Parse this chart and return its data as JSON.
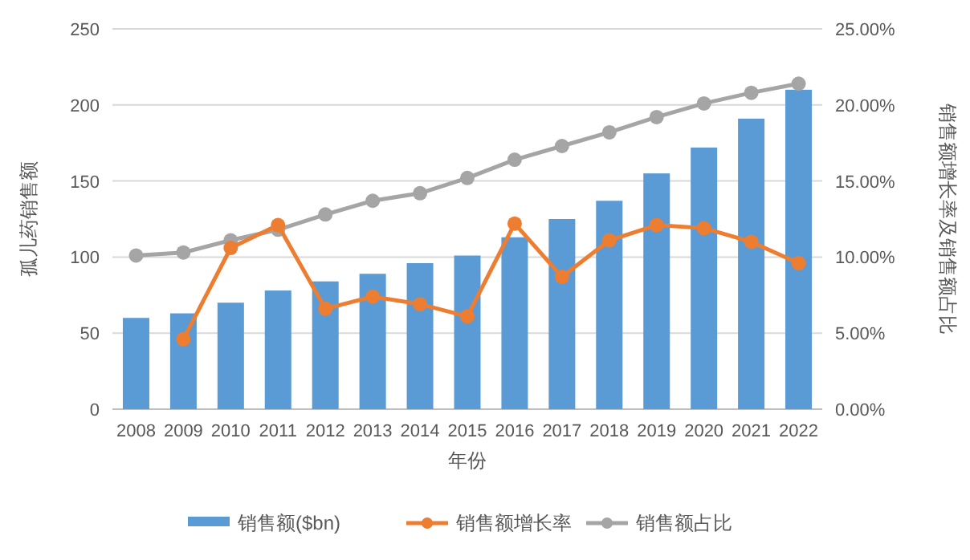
{
  "chart_data": {
    "type": "bar",
    "xlabel": "年份",
    "ylabel": "孤儿药销售额",
    "y2label": "销售额增长率及销售额占比",
    "categories": [
      "2008",
      "2009",
      "2010",
      "2011",
      "2012",
      "2013",
      "2014",
      "2015",
      "2016",
      "2017",
      "2018",
      "2019",
      "2020",
      "2021",
      "2022"
    ],
    "series": [
      {
        "name": "销售额($bn)",
        "color": "#5b9bd5",
        "values": [
          60,
          63,
          70,
          78,
          84,
          89,
          96,
          101,
          113,
          125,
          137,
          155,
          172,
          191,
          210
        ]
      },
      {
        "name": "销售额增长率",
        "type": "line",
        "axis": "y2",
        "color": "#ed7d31",
        "values": [
          null,
          4.6,
          10.6,
          12.1,
          6.6,
          7.4,
          6.9,
          6.1,
          12.2,
          8.7,
          11.1,
          12.1,
          11.9,
          11.0,
          9.6
        ]
      },
      {
        "name": "销售额占比",
        "type": "line",
        "axis": "y2",
        "color": "#a5a5a5",
        "values": [
          10.1,
          10.3,
          11.1,
          11.8,
          12.8,
          13.7,
          14.2,
          15.2,
          16.4,
          17.3,
          18.2,
          19.2,
          20.1,
          20.8,
          21.4
        ]
      }
    ],
    "ylim": [
      0,
      250
    ],
    "yticks": [
      0,
      50,
      100,
      150,
      200,
      250
    ],
    "y2lim": [
      0,
      25
    ],
    "y2ticks": [
      {
        "value": 0,
        "label": "0.00%"
      },
      {
        "value": 5,
        "label": "5.00%"
      },
      {
        "value": 10,
        "label": "10.00%"
      },
      {
        "value": 15,
        "label": "15.00%"
      },
      {
        "value": 20,
        "label": "20.00%"
      },
      {
        "value": 25,
        "label": "25.00%"
      }
    ],
    "grid": "y",
    "legend": "bottom",
    "marker": "circle",
    "line_style": "solid"
  }
}
